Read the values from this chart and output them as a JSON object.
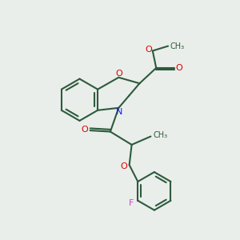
{
  "bg_color": "#eaeeea",
  "bond_color": "#2d5a3d",
  "o_color": "#dd0000",
  "n_color": "#1a1aee",
  "f_color": "#cc44cc",
  "lw": 1.5,
  "figsize": [
    3.0,
    3.0
  ],
  "dpi": 100,
  "xlim": [
    0,
    10
  ],
  "ylim": [
    0,
    10
  ]
}
